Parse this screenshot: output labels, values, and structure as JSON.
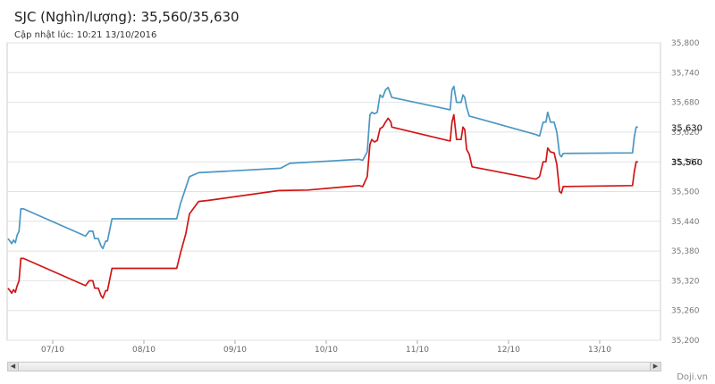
{
  "header": {
    "title": "SJC (Nghìn/lượng): 35,560/35,630",
    "updated": "Cập nhật lúc: 10:21 13/10/2016"
  },
  "credit": "Doji.vn",
  "colors": {
    "sell": "#4a97c4",
    "buy": "#d01515",
    "grid": "#e2e2e2",
    "frame": "#cccccc"
  },
  "chart_data": {
    "type": "line",
    "ylim": [
      35200,
      35800
    ],
    "y_ticks": [
      "35,200",
      "35,260",
      "35,320",
      "35,380",
      "35,440",
      "35,500",
      "35,560",
      "35,620",
      "35,680",
      "35,740",
      "35,800"
    ],
    "x_ticks": [
      "07/10",
      "08/10",
      "09/10",
      "10/10",
      "11/10",
      "12/10",
      "13/10"
    ],
    "x_range": [
      "06/10 12:00",
      "13/10 16:00"
    ],
    "grid": true,
    "last_labels": {
      "sell": "35,630",
      "buy": "35,560"
    },
    "series": [
      {
        "key": "sell",
        "points": [
          [
            6.51,
            35405
          ],
          [
            6.53,
            35400
          ],
          [
            6.55,
            35395
          ],
          [
            6.57,
            35402
          ],
          [
            6.59,
            35397
          ],
          [
            6.61,
            35412
          ],
          [
            6.63,
            35420
          ],
          [
            6.65,
            35465
          ],
          [
            6.68,
            35465
          ],
          [
            7.36,
            35410
          ],
          [
            7.4,
            35420
          ],
          [
            7.44,
            35420
          ],
          [
            7.46,
            35405
          ],
          [
            7.5,
            35405
          ],
          [
            7.53,
            35390
          ],
          [
            7.55,
            35385
          ],
          [
            7.58,
            35400
          ],
          [
            7.6,
            35400
          ],
          [
            7.65,
            35445
          ],
          [
            8.36,
            35445
          ],
          [
            8.4,
            35475
          ],
          [
            8.5,
            35530
          ],
          [
            8.6,
            35538
          ],
          [
            9.5,
            35547
          ],
          [
            9.6,
            35557
          ],
          [
            10.36,
            35565
          ],
          [
            10.4,
            35563
          ],
          [
            10.45,
            35580
          ],
          [
            10.48,
            35655
          ],
          [
            10.5,
            35660
          ],
          [
            10.53,
            35657
          ],
          [
            10.56,
            35660
          ],
          [
            10.59,
            35695
          ],
          [
            10.62,
            35690
          ],
          [
            10.65,
            35705
          ],
          [
            10.68,
            35710
          ],
          [
            10.71,
            35695
          ],
          [
            10.72,
            35690
          ],
          [
            11.36,
            35665
          ],
          [
            11.38,
            35705
          ],
          [
            11.4,
            35712
          ],
          [
            11.43,
            35680
          ],
          [
            11.48,
            35680
          ],
          [
            11.5,
            35695
          ],
          [
            11.52,
            35690
          ],
          [
            11.54,
            35670
          ],
          [
            11.57,
            35652
          ],
          [
            11.62,
            35650
          ],
          [
            12.3,
            35615
          ],
          [
            12.34,
            35612
          ],
          [
            12.38,
            35640
          ],
          [
            12.41,
            35640
          ],
          [
            12.43,
            35660
          ],
          [
            12.46,
            35640
          ],
          [
            12.5,
            35640
          ],
          [
            12.53,
            35620
          ],
          [
            12.56,
            35575
          ],
          [
            12.58,
            35570
          ],
          [
            12.6,
            35577
          ],
          [
            13.36,
            35578
          ],
          [
            13.38,
            35610
          ],
          [
            13.4,
            35630
          ],
          [
            13.42,
            35630
          ]
        ]
      },
      {
        "key": "buy",
        "points": [
          [
            6.51,
            35305
          ],
          [
            6.53,
            35300
          ],
          [
            6.55,
            35295
          ],
          [
            6.57,
            35302
          ],
          [
            6.59,
            35297
          ],
          [
            6.61,
            35310
          ],
          [
            6.63,
            35320
          ],
          [
            6.65,
            35365
          ],
          [
            6.68,
            35365
          ],
          [
            7.36,
            35310
          ],
          [
            7.4,
            35320
          ],
          [
            7.44,
            35320
          ],
          [
            7.46,
            35305
          ],
          [
            7.5,
            35305
          ],
          [
            7.53,
            35290
          ],
          [
            7.55,
            35285
          ],
          [
            7.58,
            35300
          ],
          [
            7.6,
            35300
          ],
          [
            7.65,
            35345
          ],
          [
            8.36,
            35345
          ],
          [
            8.4,
            35375
          ],
          [
            8.46,
            35415
          ],
          [
            8.5,
            35455
          ],
          [
            8.6,
            35480
          ],
          [
            8.7,
            35482
          ],
          [
            9.48,
            35502
          ],
          [
            9.8,
            35503
          ],
          [
            10.36,
            35512
          ],
          [
            10.4,
            35510
          ],
          [
            10.45,
            35530
          ],
          [
            10.48,
            35595
          ],
          [
            10.5,
            35605
          ],
          [
            10.53,
            35600
          ],
          [
            10.56,
            35603
          ],
          [
            10.59,
            35627
          ],
          [
            10.62,
            35630
          ],
          [
            10.65,
            35640
          ],
          [
            10.68,
            35648
          ],
          [
            10.71,
            35640
          ],
          [
            10.72,
            35630
          ],
          [
            11.36,
            35602
          ],
          [
            11.38,
            35640
          ],
          [
            11.4,
            35655
          ],
          [
            11.43,
            35605
          ],
          [
            11.48,
            35605
          ],
          [
            11.5,
            35630
          ],
          [
            11.52,
            35625
          ],
          [
            11.54,
            35585
          ],
          [
            11.57,
            35575
          ],
          [
            11.6,
            35550
          ],
          [
            12.3,
            35525
          ],
          [
            12.34,
            35530
          ],
          [
            12.38,
            35560
          ],
          [
            12.41,
            35560
          ],
          [
            12.43,
            35588
          ],
          [
            12.46,
            35580
          ],
          [
            12.5,
            35578
          ],
          [
            12.53,
            35555
          ],
          [
            12.56,
            35500
          ],
          [
            12.58,
            35497
          ],
          [
            12.6,
            35510
          ],
          [
            13.36,
            35512
          ],
          [
            13.38,
            35540
          ],
          [
            13.4,
            35560
          ],
          [
            13.42,
            35560
          ]
        ]
      }
    ]
  }
}
